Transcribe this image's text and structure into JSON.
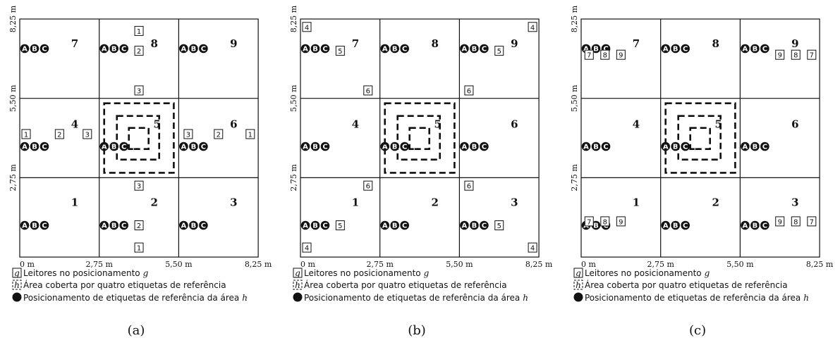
{
  "x_ticks": [
    "0 m",
    "2,75 m",
    "5,50 m",
    "8,25 m"
  ],
  "y_ticks": [
    "2,75 m",
    "5,50 m",
    "8,25 m"
  ],
  "area_labels": [
    "1",
    "2",
    "3",
    "4",
    "5",
    "6",
    "7",
    "8",
    "9"
  ],
  "tag_letters": [
    "A",
    "B",
    "C"
  ],
  "legend": {
    "readers": "Leitores no posicionamento",
    "readers_var": "g",
    "readers_box": "g",
    "area": "Área coberta por quatro etiquetas de referência",
    "area_box": "h",
    "tags": "Posicionamento de etiquetas de referência da área",
    "tags_var": "h"
  },
  "panels": [
    {
      "caption": "(a)",
      "readers": [
        {
          "label": "1",
          "col": 1.5,
          "row": 2.85
        },
        {
          "label": "2",
          "col": 1.5,
          "row": 2.6
        },
        {
          "label": "3",
          "col": 1.5,
          "row": 2.1
        },
        {
          "label": "1",
          "col": 0.08,
          "row": 1.55
        },
        {
          "label": "2",
          "col": 0.5,
          "row": 1.55
        },
        {
          "label": "3",
          "col": 0.85,
          "row": 1.55
        },
        {
          "label": "3",
          "col": 2.12,
          "row": 1.55
        },
        {
          "label": "2",
          "col": 2.5,
          "row": 1.55
        },
        {
          "label": "1",
          "col": 2.9,
          "row": 1.55
        },
        {
          "label": "3",
          "col": 1.5,
          "row": 0.9
        },
        {
          "label": "2",
          "col": 1.5,
          "row": 0.4
        },
        {
          "label": "1",
          "col": 1.5,
          "row": 0.12
        }
      ]
    },
    {
      "caption": "(b)",
      "readers": [
        {
          "label": "4",
          "col": 0.08,
          "row": 2.9
        },
        {
          "label": "5",
          "col": 0.5,
          "row": 2.6
        },
        {
          "label": "6",
          "col": 0.85,
          "row": 2.1
        },
        {
          "label": "4",
          "col": 2.92,
          "row": 2.9
        },
        {
          "label": "5",
          "col": 2.5,
          "row": 2.6
        },
        {
          "label": "6",
          "col": 2.12,
          "row": 2.1
        },
        {
          "label": "6",
          "col": 0.85,
          "row": 0.9
        },
        {
          "label": "5",
          "col": 0.5,
          "row": 0.4
        },
        {
          "label": "4",
          "col": 0.08,
          "row": 0.12
        },
        {
          "label": "6",
          "col": 2.12,
          "row": 0.9
        },
        {
          "label": "5",
          "col": 2.5,
          "row": 0.4
        },
        {
          "label": "4",
          "col": 2.92,
          "row": 0.12
        }
      ]
    },
    {
      "caption": "(c)",
      "readers": [
        {
          "label": "7",
          "col": 0.1,
          "row": 2.55
        },
        {
          "label": "8",
          "col": 0.3,
          "row": 2.55
        },
        {
          "label": "9",
          "col": 0.5,
          "row": 2.55
        },
        {
          "label": "9",
          "col": 2.5,
          "row": 2.55
        },
        {
          "label": "8",
          "col": 2.7,
          "row": 2.55
        },
        {
          "label": "7",
          "col": 2.9,
          "row": 2.55
        },
        {
          "label": "7",
          "col": 0.1,
          "row": 0.45
        },
        {
          "label": "8",
          "col": 0.3,
          "row": 0.45
        },
        {
          "label": "9",
          "col": 0.5,
          "row": 0.45
        },
        {
          "label": "9",
          "col": 2.5,
          "row": 0.45
        },
        {
          "label": "8",
          "col": 2.7,
          "row": 0.45
        },
        {
          "label": "7",
          "col": 2.9,
          "row": 0.45
        }
      ]
    }
  ]
}
